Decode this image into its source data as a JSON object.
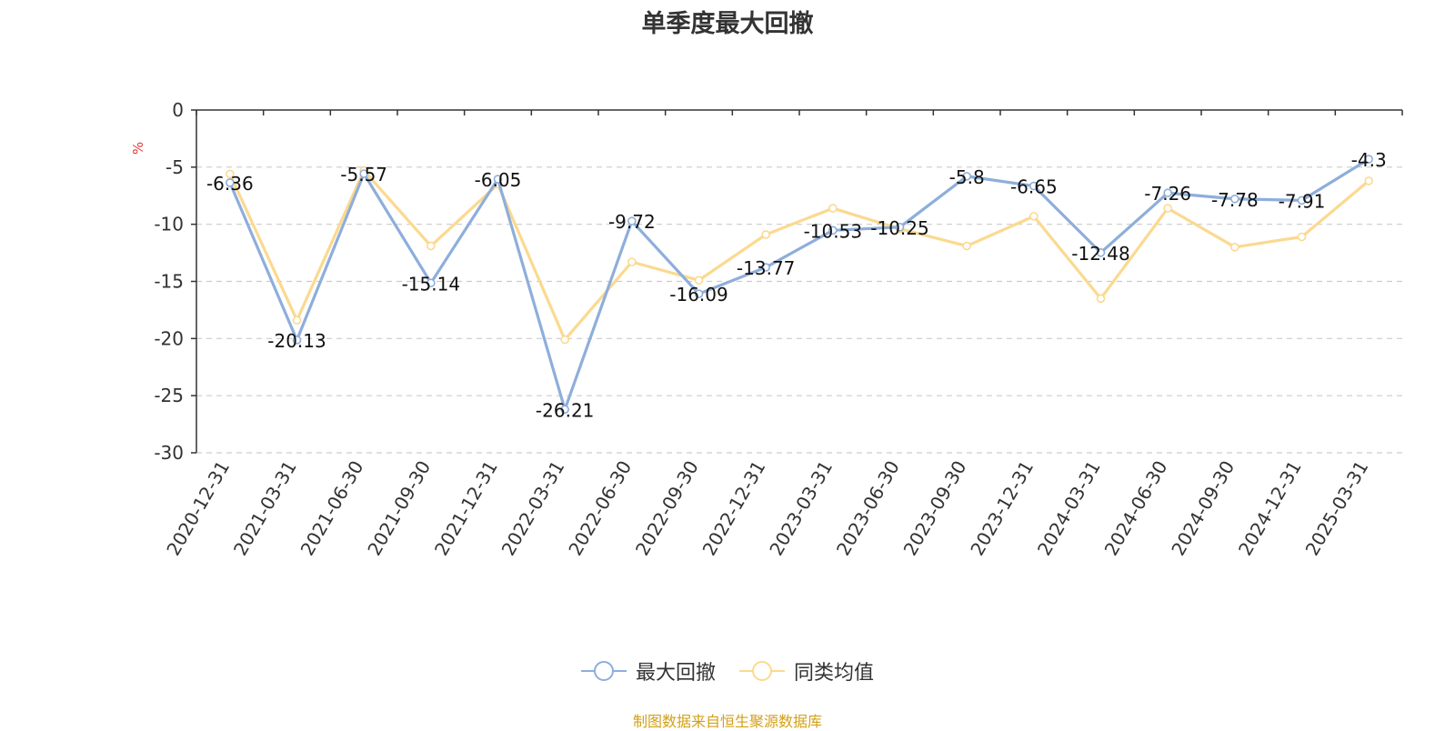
{
  "chart_data": {
    "type": "line",
    "title": "单季度最大回撤",
    "ylabel": "%",
    "xlabel": "",
    "ylim": [
      -30,
      0
    ],
    "yticks": [
      0,
      -5,
      -10,
      -15,
      -20,
      -25,
      -30
    ],
    "grid": true,
    "legend_position": "bottom",
    "categories": [
      "2020-12-31",
      "2021-03-31",
      "2021-06-30",
      "2021-09-30",
      "2021-12-31",
      "2022-03-31",
      "2022-06-30",
      "2022-09-30",
      "2022-12-31",
      "2023-03-31",
      "2023-06-30",
      "2023-09-30",
      "2023-12-31",
      "2024-03-31",
      "2024-06-30",
      "2024-09-30",
      "2024-12-31",
      "2025-03-31"
    ],
    "series": [
      {
        "name": "最大回撤",
        "color": "#8eaedb",
        "show_labels": true,
        "values": [
          -6.36,
          -20.13,
          -5.57,
          -15.14,
          -6.05,
          -26.21,
          -9.72,
          -16.09,
          -13.77,
          -10.53,
          -10.25,
          -5.8,
          -6.65,
          -12.48,
          -7.26,
          -7.78,
          -7.91,
          -4.3
        ]
      },
      {
        "name": "同类均值",
        "color": "#fbd98f",
        "show_labels": false,
        "values": [
          -5.6,
          -18.4,
          -5.3,
          -11.9,
          -6.5,
          -20.1,
          -13.3,
          -14.9,
          -10.9,
          -8.6,
          -10.4,
          -11.9,
          -9.3,
          -16.5,
          -8.6,
          -12.0,
          -11.1,
          -6.2
        ]
      }
    ]
  },
  "footer": {
    "source": "制图数据来自恒生聚源数据库",
    "source_color": "#d4a017"
  },
  "colors": {
    "axis": "#333333",
    "grid": "#cccccc",
    "ylabel": "#e53935",
    "tick_text": "#333333"
  }
}
